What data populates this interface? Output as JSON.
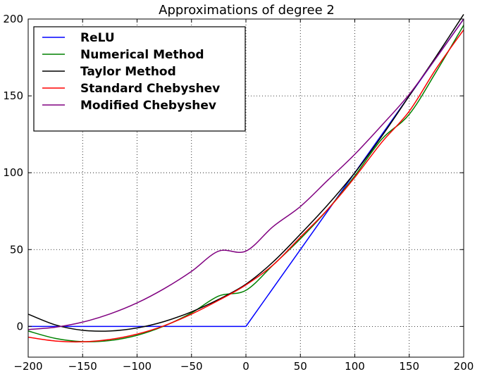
{
  "chart_data": {
    "type": "line",
    "title": "Approximations of degree 2",
    "xlabel": "",
    "ylabel": "",
    "xlim": [
      -200,
      200
    ],
    "ylim": [
      -20,
      200
    ],
    "xticks": [
      -200,
      -150,
      -100,
      -50,
      0,
      50,
      100,
      150,
      200
    ],
    "yticks": [
      0,
      50,
      100,
      150,
      200
    ],
    "grid": true,
    "legend_position": "top-left",
    "series": [
      {
        "name": "ReLU",
        "color": "#0000ff",
        "x": [
          -200,
          -150,
          -100,
          -50,
          0,
          50,
          100,
          150,
          200
        ],
        "y": [
          0,
          0,
          0,
          0,
          0,
          50,
          100,
          150,
          200
        ]
      },
      {
        "name": "Numerical Method",
        "color": "#008000",
        "x": [
          -200,
          -175,
          -150,
          -125,
          -100,
          -75,
          -50,
          -25,
          0,
          25,
          50,
          75,
          100,
          125,
          150,
          175,
          200
        ],
        "y": [
          -3,
          -7.8,
          -9.9,
          -9.2,
          -5.8,
          0.3,
          8.8,
          19.8,
          23.5,
          40,
          57,
          76,
          98,
          122,
          138,
          166,
          196
        ]
      },
      {
        "name": "Taylor Method",
        "color": "#000000",
        "x": [
          -200,
          -175,
          -150,
          -125,
          -100,
          -75,
          -50,
          -25,
          0,
          25,
          50,
          75,
          100,
          125,
          150,
          175,
          200
        ],
        "y": [
          8,
          1,
          -2.5,
          -3,
          -1,
          3.2,
          9.5,
          17.6,
          27.5,
          42,
          60,
          79,
          100,
          124,
          150,
          176,
          203
        ]
      },
      {
        "name": "Standard Chebyshev",
        "color": "#ff0000",
        "x": [
          -200,
          -175,
          -150,
          -125,
          -100,
          -75,
          -50,
          -25,
          0,
          25,
          50,
          75,
          100,
          125,
          150,
          175,
          200
        ],
        "y": [
          -7,
          -9.5,
          -10,
          -8.5,
          -5,
          0.5,
          8,
          17,
          27,
          40,
          58,
          76,
          97,
          120,
          140,
          168,
          193
        ]
      },
      {
        "name": "Modified Chebyshev",
        "color": "#800080",
        "x": [
          -200,
          -175,
          -150,
          -125,
          -100,
          -75,
          -50,
          -25,
          0,
          25,
          50,
          75,
          100,
          125,
          150,
          175,
          200
        ],
        "y": [
          -2,
          -0.5,
          2.8,
          8.1,
          15.3,
          24.6,
          35.8,
          49,
          49,
          65,
          78,
          95,
          112,
          131,
          151,
          175,
          200
        ]
      }
    ]
  }
}
